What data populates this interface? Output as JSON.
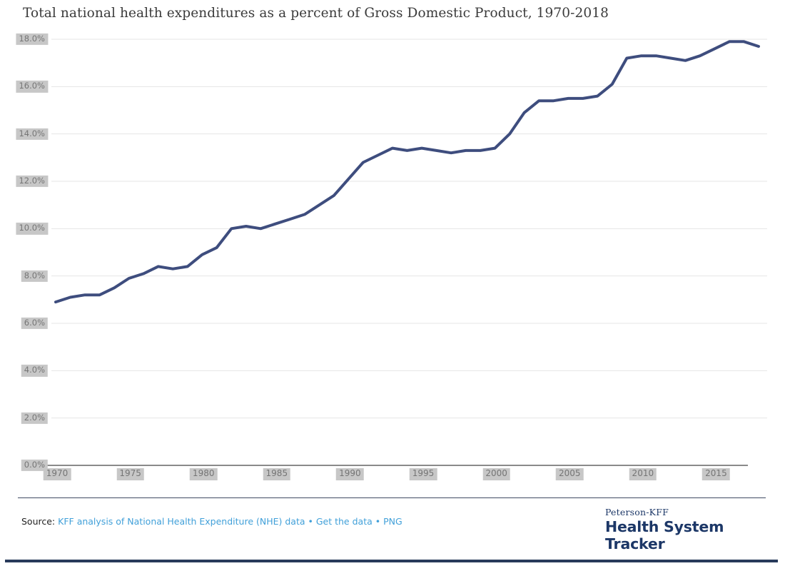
{
  "title": "Total national health expenditures as a percent of Gross Domestic Product, 1970-2018",
  "chart_data": {
    "type": "line",
    "title": "Total national health expenditures as a percent of Gross Domestic Product, 1970-2018",
    "xlabel": "",
    "ylabel": "",
    "x": [
      1970,
      1971,
      1972,
      1973,
      1974,
      1975,
      1976,
      1977,
      1978,
      1979,
      1980,
      1981,
      1982,
      1983,
      1984,
      1985,
      1986,
      1987,
      1988,
      1989,
      1990,
      1991,
      1992,
      1993,
      1994,
      1995,
      1996,
      1997,
      1998,
      1999,
      2000,
      2001,
      2002,
      2003,
      2004,
      2005,
      2006,
      2007,
      2008,
      2009,
      2010,
      2011,
      2012,
      2013,
      2014,
      2015,
      2016,
      2017,
      2018
    ],
    "series": [
      {
        "name": "Total national health expenditures as a percent of GDP",
        "values": [
          6.9,
          7.1,
          7.2,
          7.2,
          7.5,
          7.9,
          8.1,
          8.4,
          8.3,
          8.4,
          8.9,
          9.2,
          10.0,
          10.1,
          10.0,
          10.2,
          10.4,
          10.6,
          11.0,
          11.4,
          12.1,
          12.8,
          13.1,
          13.4,
          13.3,
          13.4,
          13.3,
          13.2,
          13.3,
          13.3,
          13.4,
          14.0,
          14.9,
          15.4,
          15.4,
          15.5,
          15.5,
          15.6,
          16.1,
          17.2,
          17.3,
          17.3,
          17.2,
          17.1,
          17.3,
          17.6,
          17.9,
          17.9,
          17.7
        ]
      }
    ],
    "xlim": [
      1970,
      2018
    ],
    "ylim": [
      0,
      18
    ],
    "ytick_values": [
      0,
      2,
      4,
      6,
      8,
      10,
      12,
      14,
      16,
      18
    ],
    "ytick_labels": [
      "0.0%",
      "2.0%",
      "4.0%",
      "6.0%",
      "8.0%",
      "10.0%",
      "12.0%",
      "14.0%",
      "16.0%",
      "18.0%"
    ],
    "xtick_values": [
      1970,
      1975,
      1980,
      1985,
      1990,
      1995,
      2000,
      2005,
      2010,
      2015
    ],
    "xtick_labels": [
      "1970",
      "1975",
      "1980",
      "1985",
      "1990",
      "1995",
      "2000",
      "2005",
      "2010",
      "2015"
    ],
    "grid": true,
    "legend": "none",
    "line_color": "#3e4d7e"
  },
  "footer": {
    "source_prefix": "Source:",
    "source_link": "KFF analysis of National Health Expenditure (NHE) data",
    "bullet": "•",
    "get_data_link": "Get the data",
    "png_link": "PNG",
    "brand_top": "Peterson-KFF",
    "brand_bottom": "Health System Tracker"
  },
  "colors": {
    "line": "#3e4d7e",
    "link": "#41a0d9",
    "brand": "#1c3767",
    "bottom_bar": "#283a5b",
    "grid": "#e4e4e4",
    "axis": "#8a8a8a",
    "tick_text": "#757575",
    "tick_bg": "#c7c7c7",
    "title_text": "#3b3b3b"
  }
}
